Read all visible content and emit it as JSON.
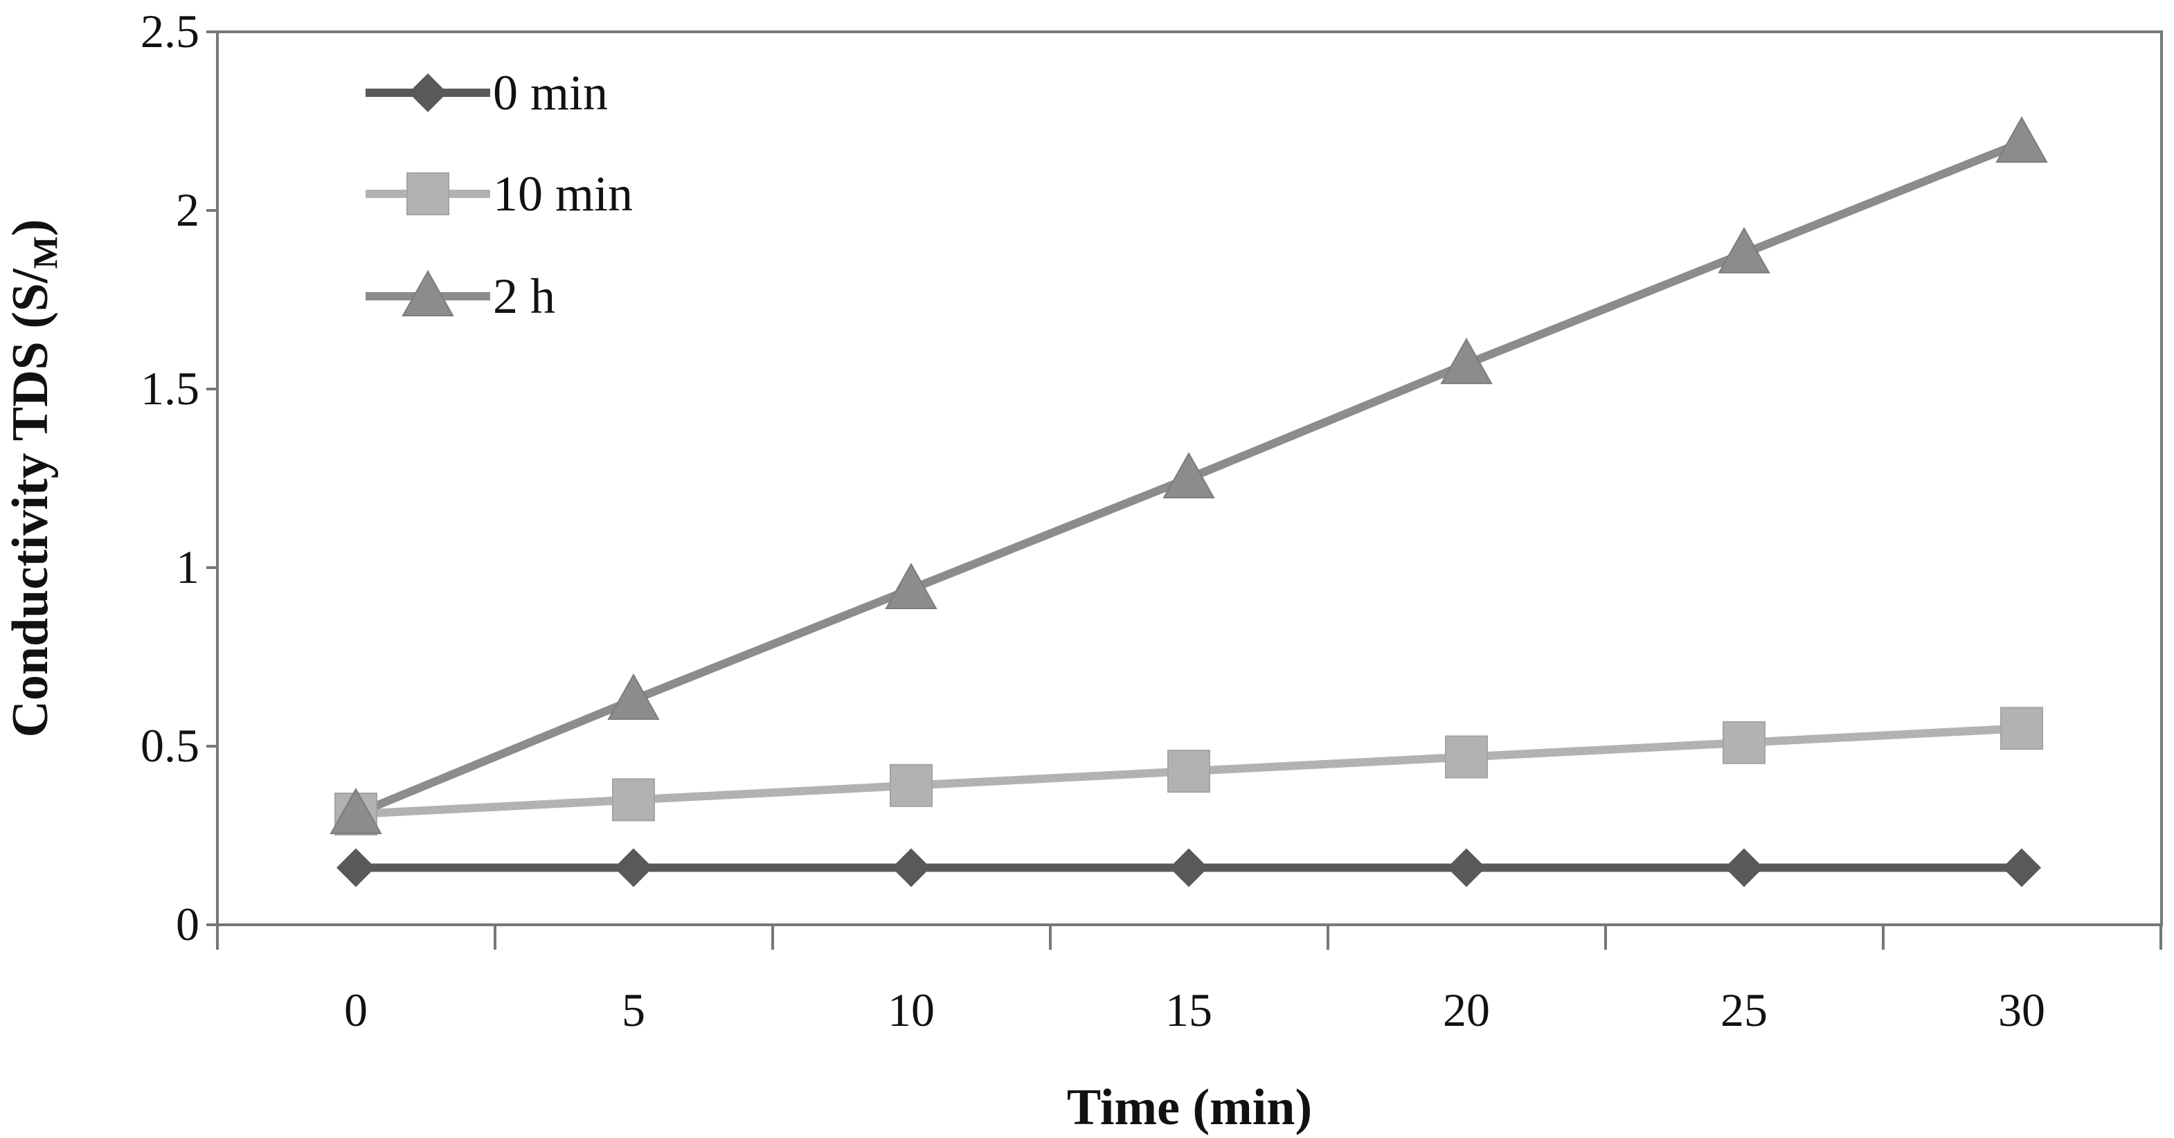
{
  "chart_data": {
    "type": "line",
    "title": "",
    "xlabel": "Time (min)",
    "ylabel": "Conductivity TDS (S/",
    "ylabel_subscript": "M",
    "ylabel_suffix": ")",
    "x": [
      0,
      5,
      10,
      15,
      20,
      25,
      30
    ],
    "x_tick_labels": [
      "0",
      "5",
      "10",
      "15",
      "20",
      "25",
      "30"
    ],
    "y_tick_labels": [
      "0",
      "0.5",
      "1",
      "1.5",
      "2",
      "2.5"
    ],
    "y_ticks": [
      0,
      0.5,
      1,
      1.5,
      2,
      2.5
    ],
    "ylim": [
      0,
      2.5
    ],
    "grid": false,
    "legend_position": "top-left",
    "series": [
      {
        "name": "0 min",
        "marker": "diamond",
        "color": "#595959",
        "values": [
          0.16,
          0.16,
          0.16,
          0.16,
          0.16,
          0.16,
          0.16
        ]
      },
      {
        "name": "10 min",
        "marker": "square",
        "color": "#b2b2b2",
        "values": [
          0.31,
          0.35,
          0.39,
          0.43,
          0.47,
          0.51,
          0.55
        ]
      },
      {
        "name": "2 h",
        "marker": "triangle",
        "color": "#8c8c8c",
        "values": [
          0.31,
          0.63,
          0.94,
          1.25,
          1.57,
          1.88,
          2.19
        ]
      }
    ]
  }
}
